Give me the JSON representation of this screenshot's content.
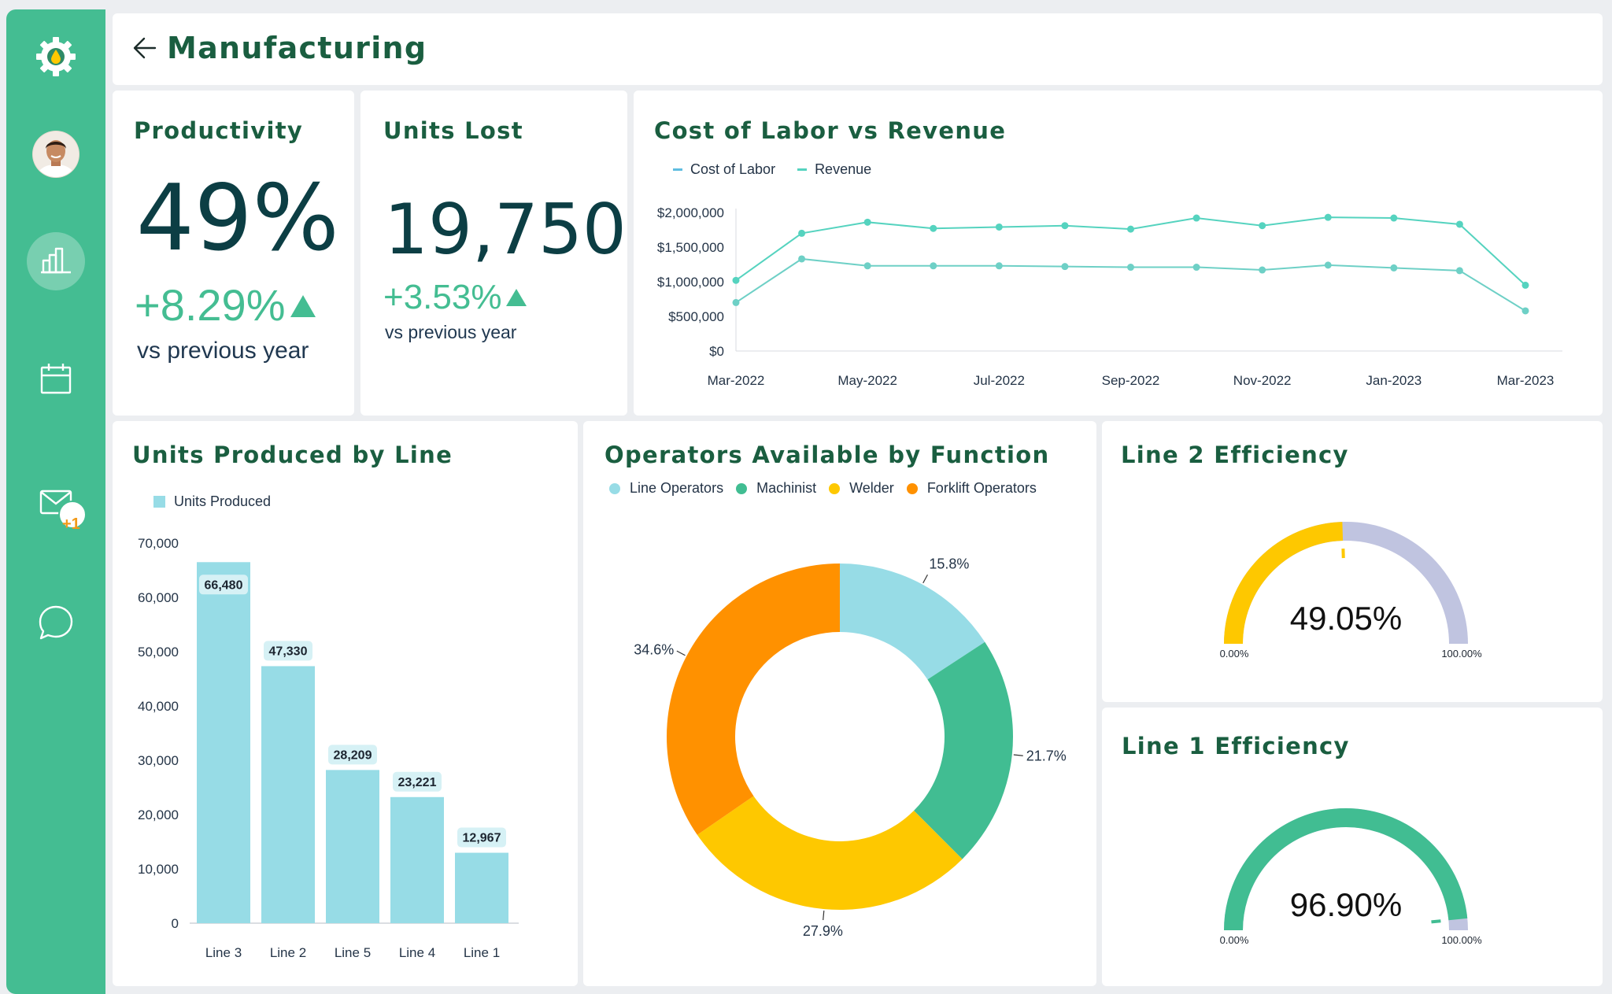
{
  "colors": {
    "sidebar": "#44bd92",
    "title": "#1a5e40",
    "bar": "#97dce6",
    "line": "#55d3bf",
    "line_operators": "#97dce6",
    "machinist": "#41bd92",
    "welder": "#fec800",
    "forklift": "#ff9100",
    "gauge_bg": "#c0c4e0"
  },
  "header": {
    "title": "Manufacturing"
  },
  "sidebar": {
    "icons": [
      "settings-gear-icon",
      "avatar",
      "chart-icon",
      "calendar-icon",
      "mail-icon",
      "chat-icon"
    ],
    "mail_badge": "+1"
  },
  "productivity": {
    "title": "Productivity",
    "value": "49%",
    "delta": "+8.29%",
    "sub": "vs previous year"
  },
  "units_lost": {
    "title": "Units Lost",
    "value": "19,750",
    "delta": "+3.53%",
    "sub": "vs previous year"
  },
  "labor_revenue": {
    "title": "Cost of Labor vs Revenue",
    "legend": [
      "Cost of Labor",
      "Revenue"
    ]
  },
  "units_produced": {
    "title": "Units Produced by Line",
    "legend": "Units Produced"
  },
  "operators": {
    "title": "Operators Available by Function",
    "legend": [
      "Line Operators",
      "Machinist",
      "Welder",
      "Forklift Operators"
    ]
  },
  "line2": {
    "title": "Line 2 Efficiency",
    "value_label": "49.05%",
    "min_label": "0.00%",
    "max_label": "100.00%"
  },
  "line1": {
    "title": "Line 1 Efficiency",
    "value_label": "96.90%",
    "min_label": "0.00%",
    "max_label": "100.00%"
  },
  "chart_data": [
    {
      "type": "line",
      "title": "Cost of Labor vs Revenue",
      "x": [
        "Mar-2022",
        "Apr-2022",
        "May-2022",
        "Jun-2022",
        "Jul-2022",
        "Aug-2022",
        "Sep-2022",
        "Oct-2022",
        "Nov-2022",
        "Dec-2022",
        "Jan-2023",
        "Feb-2023",
        "Mar-2023"
      ],
      "x_tick_labels": [
        "Mar-2022",
        "May-2022",
        "Jul-2022",
        "Sep-2022",
        "Nov-2022",
        "Jan-2023",
        "Mar-2023"
      ],
      "y_tick_labels": [
        "$0",
        "$500,000",
        "$1,000,000",
        "$1,500,000",
        "$2,000,000"
      ],
      "ylim": [
        0,
        2000000
      ],
      "series": [
        {
          "name": "Cost of Labor",
          "values": [
            700000,
            1330000,
            1230000,
            1230000,
            1230000,
            1220000,
            1210000,
            1210000,
            1170000,
            1240000,
            1200000,
            1160000,
            580000
          ]
        },
        {
          "name": "Revenue",
          "values": [
            1020000,
            1700000,
            1860000,
            1770000,
            1790000,
            1810000,
            1760000,
            1920000,
            1810000,
            1930000,
            1920000,
            1830000,
            950000
          ]
        }
      ]
    },
    {
      "type": "bar",
      "title": "Units Produced by Line",
      "categories": [
        "Line 3",
        "Line 2",
        "Line 5",
        "Line 4",
        "Line 1"
      ],
      "values": [
        66480,
        47330,
        28209,
        23221,
        12967
      ],
      "value_labels": [
        "66,480",
        "47,330",
        "28,209",
        "23,221",
        "12,967"
      ],
      "y_tick_labels": [
        "0",
        "10,000",
        "20,000",
        "30,000",
        "40,000",
        "50,000",
        "60,000",
        "70,000"
      ],
      "ylim": [
        0,
        70000
      ]
    },
    {
      "type": "pie",
      "title": "Operators Available by Function",
      "categories": [
        "Line Operators",
        "Machinist",
        "Welder",
        "Forklift Operators"
      ],
      "values": [
        15.8,
        21.7,
        27.9,
        34.6
      ],
      "value_labels": [
        "15.8%",
        "21.7%",
        "27.9%",
        "34.6%"
      ]
    },
    {
      "type": "gauge",
      "title": "Line 2 Efficiency",
      "value": 49.05,
      "range": [
        0,
        100
      ]
    },
    {
      "type": "gauge",
      "title": "Line 1 Efficiency",
      "value": 96.9,
      "range": [
        0,
        100
      ]
    }
  ]
}
